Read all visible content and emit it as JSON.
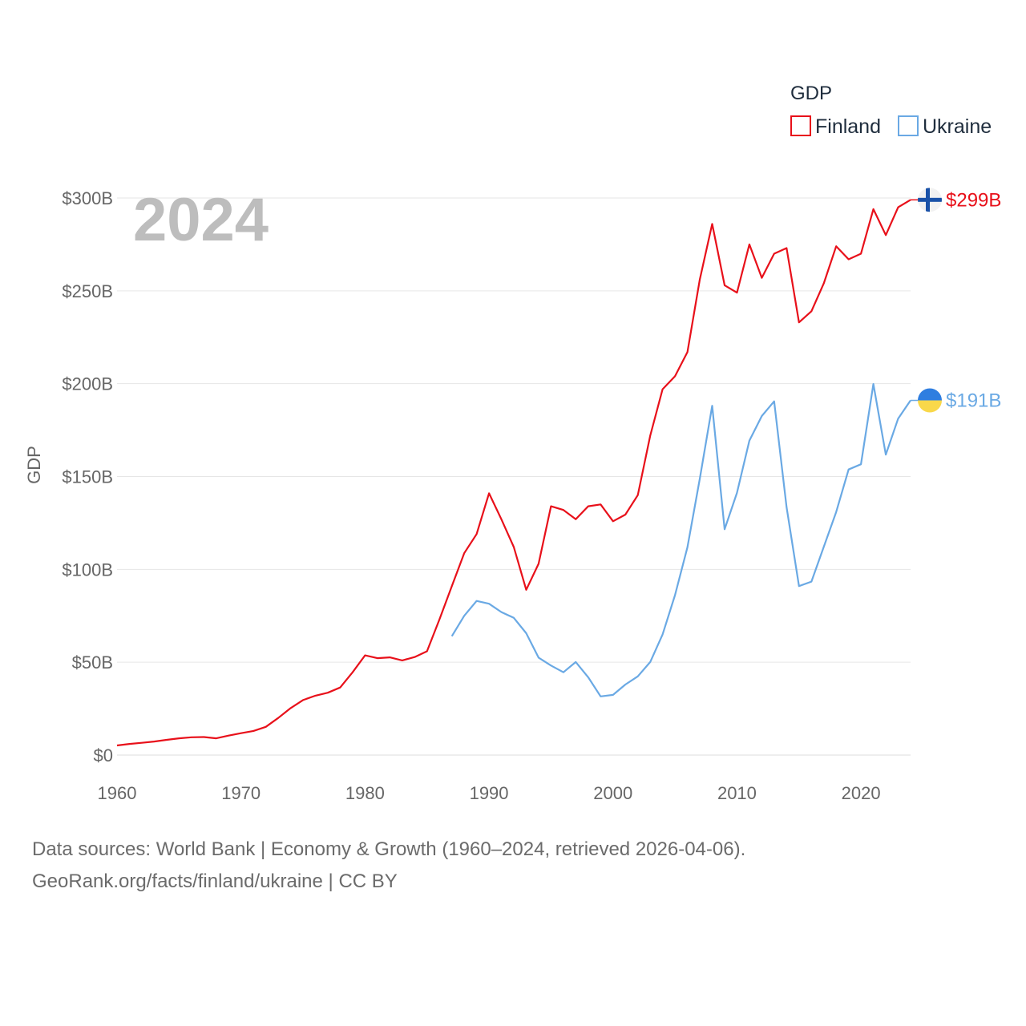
{
  "chart_data": {
    "type": "line",
    "title": "",
    "year_label": "2024",
    "xlabel": "",
    "ylabel": "GDP",
    "xlim": [
      1960,
      2024
    ],
    "ylim": [
      0,
      300
    ],
    "x_ticks": [
      1960,
      1970,
      1980,
      1990,
      2000,
      2010,
      2020
    ],
    "y_ticks": [
      0,
      50,
      100,
      150,
      200,
      250,
      300
    ],
    "y_tick_labels": [
      "$0",
      "$50B",
      "$100B",
      "$150B",
      "$200B",
      "$250B",
      "$300B"
    ],
    "grid": true,
    "legend": {
      "title": "GDP",
      "position": "top-right"
    },
    "series": [
      {
        "name": "Finland",
        "color": "#e8101a",
        "end_label": "$299B",
        "flag_icon": "finland-flag-icon",
        "x": [
          1960,
          1961,
          1962,
          1963,
          1964,
          1965,
          1966,
          1967,
          1968,
          1969,
          1970,
          1971,
          1972,
          1973,
          1974,
          1975,
          1976,
          1977,
          1978,
          1979,
          1980,
          1981,
          1982,
          1983,
          1984,
          1985,
          1986,
          1987,
          1988,
          1989,
          1990,
          1991,
          1992,
          1993,
          1994,
          1995,
          1996,
          1997,
          1998,
          1999,
          2000,
          2001,
          2002,
          2003,
          2004,
          2005,
          2006,
          2007,
          2008,
          2009,
          2010,
          2011,
          2012,
          2013,
          2014,
          2015,
          2016,
          2017,
          2018,
          2019,
          2020,
          2021,
          2022,
          2023,
          2024
        ],
        "values": [
          5.2,
          6.0,
          6.6,
          7.3,
          8.2,
          9.0,
          9.6,
          9.7,
          9.0,
          10.5,
          11.8,
          13.0,
          15.2,
          20.0,
          25.3,
          29.6,
          32.0,
          33.6,
          36.4,
          44.6,
          53.7,
          52.2,
          52.6,
          51.0,
          52.8,
          55.9,
          73.0,
          91.0,
          108.7,
          119.0,
          141.0,
          127.0,
          112.0,
          89.0,
          103.0,
          134.0,
          132.0,
          127.0,
          134.0,
          135.0,
          125.9,
          129.5,
          140.0,
          172.0,
          197.0,
          204.0,
          217.0,
          256.0,
          286.0,
          253.0,
          249.0,
          275.0,
          257.0,
          270.0,
          273.0,
          233.0,
          239.0,
          254.0,
          274.0,
          267.0,
          270.0,
          294.0,
          280.0,
          295.0,
          299.0
        ]
      },
      {
        "name": "Ukraine",
        "color": "#6aa9e4",
        "end_label": "$191B",
        "flag_icon": "ukraine-flag-icon",
        "x": [
          1987,
          1988,
          1989,
          1990,
          1991,
          1992,
          1993,
          1994,
          1995,
          1996,
          1997,
          1998,
          1999,
          2000,
          2001,
          2002,
          2003,
          2004,
          2005,
          2006,
          2007,
          2008,
          2009,
          2010,
          2011,
          2012,
          2013,
          2014,
          2015,
          2016,
          2017,
          2018,
          2019,
          2020,
          2021,
          2022,
          2023,
          2024
        ],
        "values": [
          64.0,
          75.0,
          83.0,
          81.5,
          77.0,
          73.9,
          65.6,
          52.5,
          48.2,
          44.6,
          50.1,
          41.9,
          31.6,
          32.4,
          38.0,
          42.4,
          50.1,
          64.9,
          86.1,
          111.9,
          148.7,
          188.1,
          121.6,
          141.2,
          169.3,
          182.6,
          190.5,
          133.5,
          91.0,
          93.4,
          112.1,
          130.9,
          153.8,
          156.6,
          199.8,
          161.8,
          181.2,
          191.0
        ]
      }
    ]
  },
  "footer": {
    "line1": "Data sources: World Bank | Economy & Growth (1960–2024, retrieved 2026-04-06).",
    "line2": "GeoRank.org/facts/finland/ukraine | CC BY"
  }
}
